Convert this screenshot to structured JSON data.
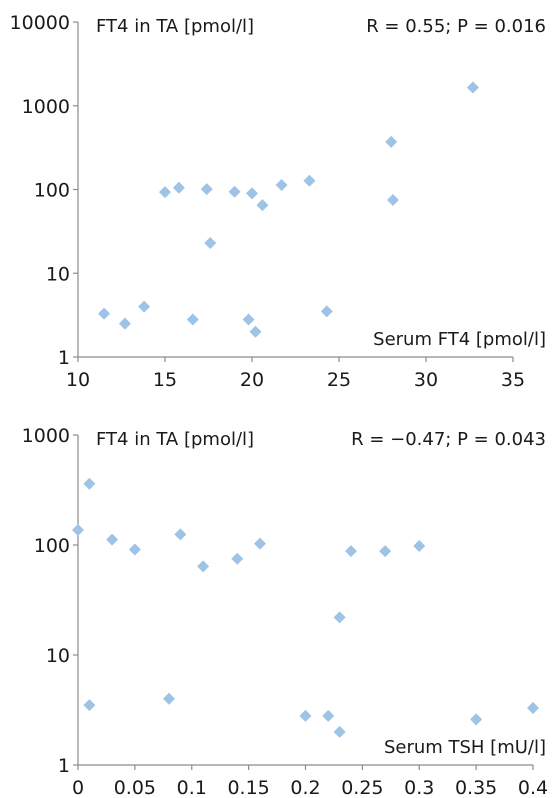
{
  "chart_data": [
    {
      "type": "scatter",
      "y_scale": "log",
      "xlim": [
        10,
        35
      ],
      "ylim": [
        1,
        10000
      ],
      "x_ticks": [
        "10",
        "15",
        "20",
        "25",
        "30",
        "35"
      ],
      "y_ticks": [
        "1",
        "10",
        "100",
        "1000",
        "10000"
      ],
      "ylabel": "FT4 in TA [pmol/l]",
      "xlabel": "Serum FT4 [pmol/l]",
      "annotation": "R = 0.55; P = 0.016",
      "marker_color": "#9dc3e6",
      "grid": false,
      "points": [
        {
          "x": 11.5,
          "y": 3.3
        },
        {
          "x": 12.7,
          "y": 2.5
        },
        {
          "x": 13.8,
          "y": 4.0
        },
        {
          "x": 15.0,
          "y": 93
        },
        {
          "x": 15.8,
          "y": 105
        },
        {
          "x": 16.6,
          "y": 2.8
        },
        {
          "x": 17.4,
          "y": 101
        },
        {
          "x": 17.6,
          "y": 23
        },
        {
          "x": 19.0,
          "y": 94
        },
        {
          "x": 19.8,
          "y": 2.8
        },
        {
          "x": 20.0,
          "y": 90
        },
        {
          "x": 20.2,
          "y": 2.0
        },
        {
          "x": 20.6,
          "y": 65
        },
        {
          "x": 21.7,
          "y": 113
        },
        {
          "x": 23.3,
          "y": 127
        },
        {
          "x": 24.3,
          "y": 3.5
        },
        {
          "x": 28.0,
          "y": 370
        },
        {
          "x": 28.1,
          "y": 75
        },
        {
          "x": 32.7,
          "y": 1650
        }
      ]
    },
    {
      "type": "scatter",
      "y_scale": "log",
      "xlim": [
        0,
        0.4
      ],
      "ylim": [
        1,
        1000
      ],
      "x_ticks": [
        "0",
        "0.05",
        "0.1",
        "0.15",
        "0.2",
        "0.25",
        "0.3",
        "0.35",
        "0.4"
      ],
      "y_ticks": [
        "1",
        "10",
        "100",
        "1000"
      ],
      "ylabel": "FT4 in TA [pmol/l]",
      "xlabel": "Serum TSH [mU/l]",
      "annotation": "R = −0.47; P = 0.043",
      "marker_color": "#9dc3e6",
      "grid": false,
      "points": [
        {
          "x": 0.0,
          "y": 137
        },
        {
          "x": 0.01,
          "y": 360
        },
        {
          "x": 0.01,
          "y": 3.5
        },
        {
          "x": 0.03,
          "y": 112
        },
        {
          "x": 0.05,
          "y": 91
        },
        {
          "x": 0.08,
          "y": 4.0
        },
        {
          "x": 0.09,
          "y": 125
        },
        {
          "x": 0.11,
          "y": 64
        },
        {
          "x": 0.14,
          "y": 75
        },
        {
          "x": 0.16,
          "y": 103
        },
        {
          "x": 0.2,
          "y": 2.8
        },
        {
          "x": 0.22,
          "y": 2.8
        },
        {
          "x": 0.23,
          "y": 22
        },
        {
          "x": 0.23,
          "y": 2.0
        },
        {
          "x": 0.24,
          "y": 88
        },
        {
          "x": 0.27,
          "y": 88
        },
        {
          "x": 0.3,
          "y": 98
        },
        {
          "x": 0.35,
          "y": 2.6
        },
        {
          "x": 0.4,
          "y": 3.3
        }
      ]
    }
  ]
}
